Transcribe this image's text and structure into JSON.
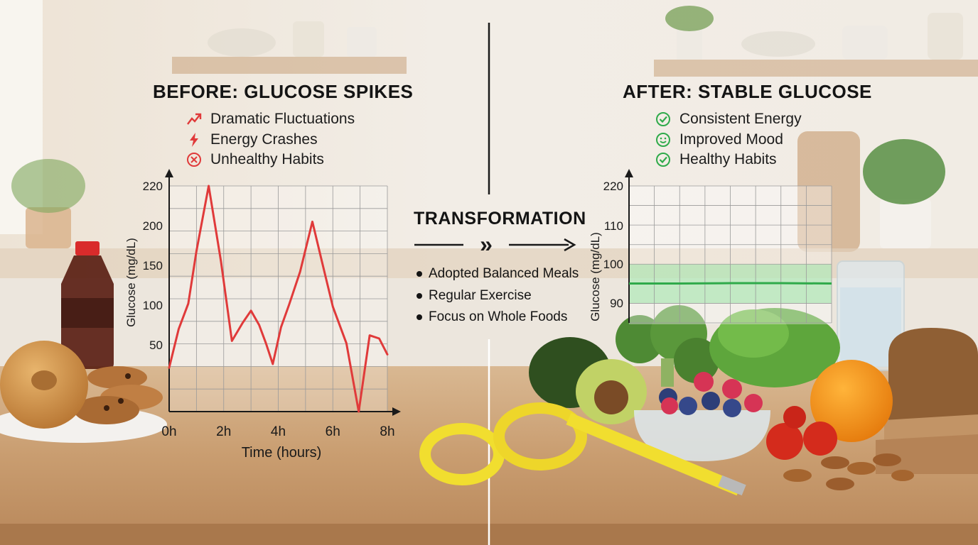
{
  "before": {
    "title": "BEFORE: GLUCOSE SPIKES",
    "items": [
      {
        "label": "Dramatic Fluctuations",
        "icon": "trend-up-arrow-icon"
      },
      {
        "label": "Energy Crashes",
        "icon": "lightning-icon"
      },
      {
        "label": "Unhealthy Habits",
        "icon": "x-circle-icon"
      }
    ]
  },
  "after": {
    "title": "AFTER: STABLE GLUCOSE",
    "items": [
      {
        "label": "Consistent Energy",
        "icon": "check-circle-icon"
      },
      {
        "label": "Improved Mood",
        "icon": "smiley-icon"
      },
      {
        "label": "Healthy Habits",
        "icon": "check-circle-icon"
      }
    ]
  },
  "transformation": {
    "title": "TRANSFORMATION",
    "arrow_symbol": "»",
    "items": [
      "Adopted Balanced Meals",
      "Regular Exercise",
      "Focus on Whole Foods"
    ]
  },
  "colors": {
    "before_accent": "#e03a3a",
    "after_accent": "#2faa4a",
    "after_band": "#9be3a6"
  },
  "chart_data": [
    {
      "type": "line",
      "xlabel": "Time (hours)",
      "ylabel": "Glucose (mg/dL)",
      "xticks": [
        "0h",
        "2h",
        "4h",
        "6h",
        "8h"
      ],
      "yticks": [
        "50",
        "100",
        "150",
        "200",
        "220"
      ],
      "xlim": [
        0,
        8
      ],
      "grid": true,
      "series": [
        {
          "color": "#e03a3a",
          "x": [
            0,
            0.35,
            0.7,
            1.0,
            1.45,
            1.9,
            2.3,
            2.7,
            3.0,
            3.3,
            3.55,
            3.8,
            4.1,
            4.4,
            4.8,
            5.25,
            5.6,
            6.0,
            6.5,
            6.95,
            7.35,
            7.7,
            8.0
          ],
          "y": [
            38,
            70,
            102,
            168,
            220,
            155,
            55,
            78,
            93,
            75,
            52,
            40,
            72,
            101,
            142,
            202,
            155,
            98,
            52,
            15,
            62,
            58,
            45
          ]
        }
      ]
    },
    {
      "type": "line",
      "ylabel": "Glucose (mg/dL)",
      "yticks": [
        "90",
        "100",
        "110",
        "220"
      ],
      "xlim": [
        0,
        8
      ],
      "grid": true,
      "series": [
        {
          "color": "#2faa4a",
          "x": [
            0,
            2,
            4,
            6,
            8
          ],
          "y": [
            95,
            95,
            95.1,
            95.1,
            95
          ]
        }
      ],
      "band": [
        90,
        100
      ]
    }
  ]
}
